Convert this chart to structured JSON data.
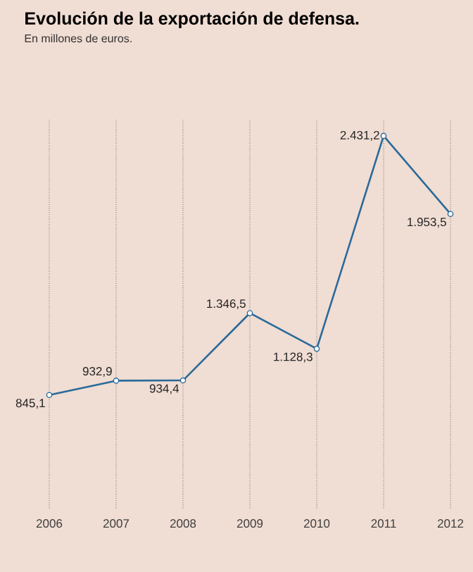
{
  "chart_data": {
    "type": "line",
    "title": "Evolución de la exportación de defensa.",
    "subtitle": "En millones de euros.",
    "categories": [
      "2006",
      "2007",
      "2008",
      "2009",
      "2010",
      "2011",
      "2012"
    ],
    "values": [
      845.1,
      932.9,
      934.4,
      1346.5,
      1128.3,
      2431.2,
      1953.5
    ],
    "value_labels": [
      "845,1",
      "932,9",
      "934,4",
      "1.346,5",
      "1.128,3",
      "2.431,2",
      "1.953,5"
    ],
    "color": "#2a6a9a",
    "ylim": [
      150,
      2530
    ],
    "grid": "x",
    "marker": "circle",
    "line_style": "solid",
    "tick_labels": "x"
  }
}
